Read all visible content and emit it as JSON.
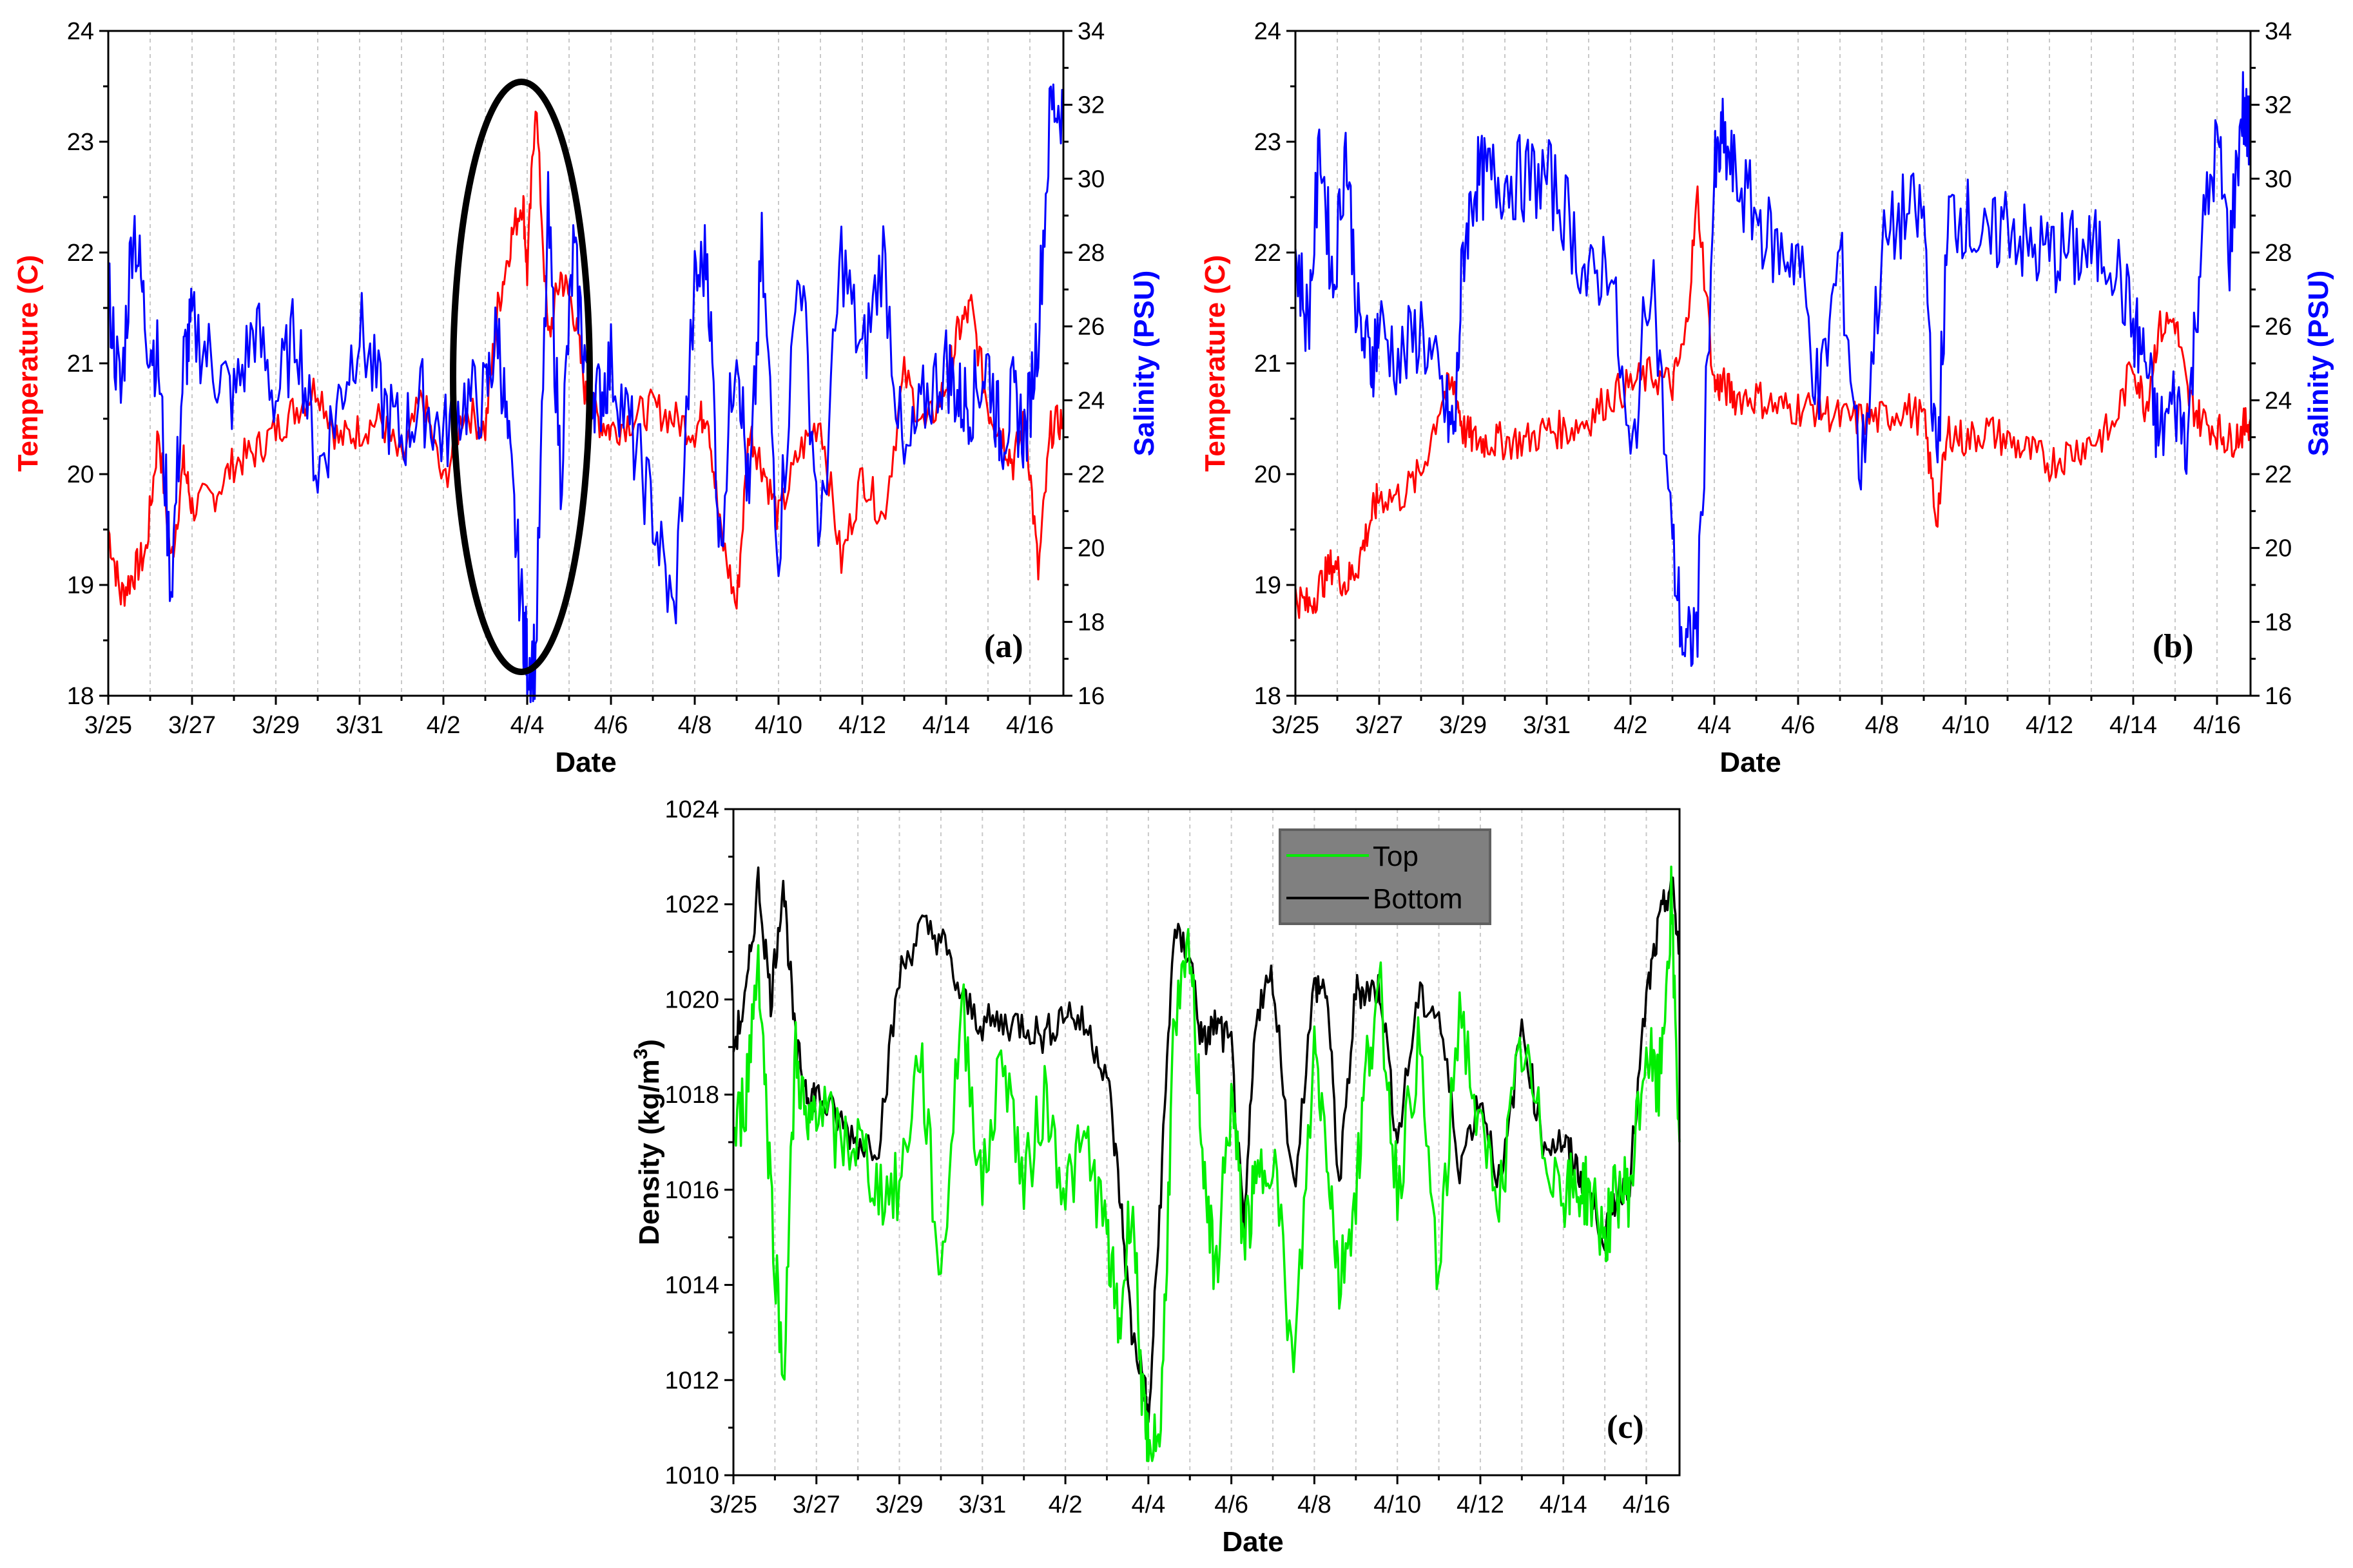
{
  "chart_data": [
    {
      "panel": "(a)",
      "type": "line",
      "xlabel": "Date",
      "x_ticks": [
        "3/25",
        "3/27",
        "3/29",
        "3/31",
        "4/2",
        "4/4",
        "4/6",
        "4/8",
        "4/10",
        "4/12",
        "4/14",
        "4/16"
      ],
      "xlim": [
        0,
        22.8
      ],
      "y_left": {
        "label": "Temperature (C)",
        "ticks": [
          18,
          19,
          20,
          21,
          22,
          23,
          24
        ],
        "lim": [
          18,
          24
        ],
        "color": "#ff0000"
      },
      "y_right": {
        "label": "Salinity (PSU)",
        "ticks": [
          16,
          18,
          20,
          22,
          24,
          26,
          28,
          30,
          32,
          34
        ],
        "lim": [
          16,
          34
        ],
        "color": "#0000ff"
      },
      "annotation": "ellipse around 4/4 event",
      "series": [
        {
          "name": "Temperature",
          "axis": "left",
          "color": "#ff0000",
          "x": [
            0,
            0.3,
            0.6,
            0.9,
            1.2,
            1.5,
            1.8,
            2,
            2.5,
            3,
            3.5,
            4,
            4.5,
            5,
            5.5,
            6,
            6.5,
            7,
            7.5,
            8,
            8.5,
            9,
            9.3,
            9.6,
            9.9,
            10,
            10.2,
            10.5,
            10.8,
            11.1,
            11.4,
            11.7,
            12,
            12.5,
            13,
            13.5,
            14,
            14.3,
            14.6,
            15,
            15.3,
            15.6,
            16,
            16.5,
            17,
            17.5,
            18,
            18.5,
            19,
            19.5,
            20,
            20.3,
            20.6,
            21,
            21.3,
            21.6,
            21.9,
            22.2,
            22.5,
            22.8
          ],
          "values": [
            19.5,
            18.9,
            19.1,
            19.3,
            20.4,
            19.2,
            20.1,
            19.7,
            19.8,
            20.1,
            20.2,
            20.4,
            20.6,
            20.8,
            20.3,
            20.4,
            20.5,
            20.1,
            20.7,
            19.9,
            20.6,
            20.4,
            21.5,
            22.1,
            22.5,
            21.8,
            23.4,
            21.2,
            21.8,
            21.5,
            20.7,
            20.5,
            20.4,
            20.5,
            20.6,
            20.5,
            20.4,
            20.6,
            19.5,
            18.8,
            20.4,
            20.1,
            19.6,
            20.2,
            20.5,
            19.2,
            20.0,
            19.6,
            20.9,
            20.4,
            20.8,
            21.3,
            21.5,
            20.6,
            20.4,
            20.1,
            20.5,
            19.1,
            20.4,
            20.5
          ]
        },
        {
          "name": "Salinity",
          "axis": "right",
          "color": "#0000ff",
          "x": [
            0,
            0.3,
            0.6,
            0.9,
            1.2,
            1.5,
            1.8,
            2,
            2.5,
            3,
            3.5,
            4,
            4.5,
            5,
            5.5,
            6,
            6.5,
            7,
            7.5,
            8,
            8.5,
            9,
            9.3,
            9.6,
            9.9,
            10,
            10.2,
            10.5,
            10.8,
            11.1,
            11.4,
            11.7,
            12,
            12.5,
            13,
            13.5,
            14,
            14.3,
            14.6,
            15,
            15.3,
            15.6,
            16,
            16.5,
            17,
            17.5,
            18,
            18.5,
            19,
            19.5,
            20,
            20.3,
            20.6,
            21,
            21.3,
            21.6,
            21.9,
            22.2,
            22.5,
            22.8
          ],
          "values": [
            27,
            24,
            29,
            26,
            25,
            19,
            25,
            26,
            25,
            24,
            26,
            24,
            26,
            22,
            24,
            26,
            24,
            23,
            24,
            23,
            24,
            24,
            26,
            22,
            18,
            17,
            17,
            29,
            22,
            28,
            25,
            24,
            25,
            23,
            21,
            18,
            27,
            28,
            20,
            26,
            21,
            28,
            20,
            28,
            20,
            28,
            25,
            28,
            22,
            24,
            25,
            24,
            24,
            25,
            23,
            24,
            23,
            26,
            32,
            32
          ]
        }
      ]
    },
    {
      "panel": "(b)",
      "type": "line",
      "xlabel": "Date",
      "x_ticks": [
        "3/25",
        "3/27",
        "3/29",
        "3/31",
        "4/2",
        "4/4",
        "4/6",
        "4/8",
        "4/10",
        "4/12",
        "4/14",
        "4/16"
      ],
      "xlim": [
        0,
        22.8
      ],
      "y_left": {
        "label": "Temperature (C)",
        "ticks": [
          18,
          19,
          20,
          21,
          22,
          23,
          24
        ],
        "lim": [
          18,
          24
        ],
        "color": "#ff0000"
      },
      "y_right": {
        "label": "Salinity (PSU)",
        "ticks": [
          16,
          18,
          20,
          22,
          24,
          26,
          28,
          30,
          32,
          34
        ],
        "lim": [
          16,
          34
        ],
        "color": "#0000ff"
      },
      "series": [
        {
          "name": "Temperature",
          "axis": "left",
          "color": "#ff0000",
          "x": [
            0,
            0.3,
            0.6,
            0.9,
            1.2,
            1.5,
            1.8,
            2,
            2.5,
            3,
            3.5,
            3.8,
            4,
            4.3,
            4.6,
            5,
            5.5,
            6,
            6.5,
            7,
            7.5,
            8,
            8.5,
            9,
            9.3,
            9.6,
            10,
            10.2,
            10.5,
            11,
            11.5,
            12,
            12.5,
            13,
            13.5,
            14,
            14.5,
            15,
            15.3,
            15.6,
            16,
            16.5,
            17,
            17.5,
            18,
            18.5,
            19,
            19.5,
            20,
            20.3,
            20.6,
            21,
            21.3,
            21.6,
            22,
            22.3,
            22.6,
            22.8
          ],
          "values": [
            18.9,
            18.8,
            19.0,
            19.2,
            19.0,
            19.2,
            19.6,
            19.8,
            19.8,
            20.0,
            20.7,
            20.8,
            20.4,
            20.3,
            20.3,
            20.3,
            20.3,
            20.4,
            20.4,
            20.5,
            20.7,
            20.8,
            20.9,
            20.8,
            21.2,
            22.5,
            20.8,
            20.8,
            20.7,
            20.7,
            20.6,
            20.6,
            20.6,
            20.5,
            20.5,
            20.5,
            20.6,
            20.5,
            19.6,
            20.4,
            20.3,
            20.4,
            20.3,
            20.2,
            20.1,
            20.2,
            20.3,
            20.4,
            21.0,
            20.6,
            21.3,
            21.4,
            20.7,
            20.5,
            20.4,
            20.3,
            20.4,
            20.5
          ]
        },
        {
          "name": "Salinity",
          "axis": "right",
          "color": "#0000ff",
          "x": [
            0,
            0.3,
            0.6,
            0.9,
            1.2,
            1.5,
            1.8,
            2,
            2.5,
            3,
            3.5,
            3.8,
            4,
            4.3,
            4.6,
            5,
            5.5,
            6,
            6.5,
            7,
            7.5,
            8,
            8.5,
            9,
            9.3,
            9.6,
            10,
            10.2,
            10.5,
            11,
            11.5,
            12,
            12.5,
            13,
            13.5,
            14,
            14.5,
            15,
            15.3,
            15.6,
            16,
            16.5,
            17,
            17.5,
            18,
            18.5,
            19,
            19.5,
            20,
            20.3,
            20.6,
            21,
            21.3,
            21.6,
            22,
            22.3,
            22.6,
            22.8
          ],
          "values": [
            28,
            26,
            31,
            27,
            31,
            26,
            25,
            26,
            25,
            26,
            24,
            23,
            28,
            30,
            30,
            30,
            30,
            30,
            29,
            27,
            28,
            22,
            28,
            20,
            17,
            18,
            30,
            31,
            30,
            29,
            28,
            28,
            24,
            28,
            22,
            28,
            29,
            29,
            22,
            29,
            29,
            28,
            29,
            28,
            28,
            28,
            28,
            28,
            26,
            25,
            23,
            24,
            23,
            28,
            31,
            28,
            32,
            31
          ]
        }
      ]
    },
    {
      "panel": "(c)",
      "type": "line",
      "xlabel": "Date",
      "ylabel": "Density (kg/m",
      "ylabel_sup": "3",
      "ylabel_end": ")",
      "x_ticks": [
        "3/25",
        "3/27",
        "3/29",
        "3/31",
        "4/2",
        "4/4",
        "4/6",
        "4/8",
        "4/10",
        "4/12",
        "4/14",
        "4/16"
      ],
      "xlim": [
        0,
        22.8
      ],
      "y_ticks": [
        1010,
        1012,
        1014,
        1016,
        1018,
        1020,
        1022,
        1024
      ],
      "ylim": [
        1010,
        1024
      ],
      "legend": "top-center",
      "series": [
        {
          "name": "Top",
          "color": "#00ee00",
          "x": [
            0,
            0.3,
            0.6,
            0.9,
            1.2,
            1.5,
            1.8,
            2,
            2.5,
            3,
            3.5,
            4,
            4.5,
            5,
            5.5,
            6,
            6.5,
            7,
            7.5,
            8,
            8.5,
            9,
            9.3,
            9.6,
            9.9,
            10,
            10.3,
            10.6,
            11,
            11.3,
            11.6,
            12,
            12.3,
            12.6,
            13,
            13.5,
            14,
            14.3,
            14.6,
            15,
            15.3,
            15.6,
            16,
            16.5,
            17,
            17.5,
            18,
            18.5,
            19,
            19.5,
            20,
            20.3,
            20.6,
            21,
            21.3,
            21.6,
            22,
            22.3,
            22.6,
            22.8
          ],
          "values": [
            1017,
            1018,
            1021,
            1016,
            1012,
            1019,
            1017,
            1018,
            1017,
            1017,
            1016,
            1016,
            1019,
            1014,
            1020,
            1016,
            1019,
            1016,
            1018,
            1016,
            1017,
            1015,
            1013,
            1016,
            1011,
            1010.5,
            1011,
            1019,
            1021,
            1017,
            1014,
            1018,
            1015,
            1016,
            1017,
            1012,
            1019,
            1017,
            1014,
            1016,
            1019,
            1020,
            1016,
            1019,
            1014,
            1020,
            1017,
            1016,
            1019,
            1017,
            1016,
            1016,
            1016,
            1015,
            1016,
            1016,
            1019,
            1018,
            1022,
            1017
          ]
        },
        {
          "name": "Bottom",
          "color": "#000000",
          "x": [
            0,
            0.3,
            0.6,
            0.9,
            1.2,
            1.5,
            1.8,
            2,
            2.5,
            3,
            3.5,
            4,
            4.5,
            5,
            5.5,
            6,
            6.5,
            7,
            7.5,
            8,
            8.5,
            9,
            9.3,
            9.6,
            9.9,
            10,
            10.3,
            10.6,
            11,
            11.3,
            11.6,
            12,
            12.3,
            12.6,
            13,
            13.5,
            14,
            14.3,
            14.6,
            15,
            15.3,
            15.6,
            16,
            16.5,
            17,
            17.5,
            18,
            18.5,
            19,
            19.5,
            20,
            20.3,
            20.6,
            21,
            21.3,
            21.6,
            22,
            22.3,
            22.6,
            22.8
          ],
          "values": [
            1019,
            1020,
            1022.5,
            1020,
            1022.5,
            1019,
            1018,
            1018,
            1017.5,
            1017,
            1017,
            1020.5,
            1021.5,
            1021.3,
            1020,
            1019.5,
            1019.5,
            1019.5,
            1019.2,
            1019.8,
            1019.4,
            1018.5,
            1016,
            1013,
            1012,
            1011,
            1016,
            1021.3,
            1021,
            1019,
            1019.5,
            1019,
            1015,
            1019.8,
            1020.5,
            1016,
            1020.3,
            1020.2,
            1016,
            1020.2,
            1020.2,
            1020.2,
            1017,
            1020,
            1019.7,
            1016.5,
            1018,
            1016,
            1019.5,
            1017,
            1017,
            1016.5,
            1016,
            1015,
            1016,
            1016.2,
            1020,
            1021.5,
            1022.5,
            1021
          ]
        }
      ]
    }
  ]
}
